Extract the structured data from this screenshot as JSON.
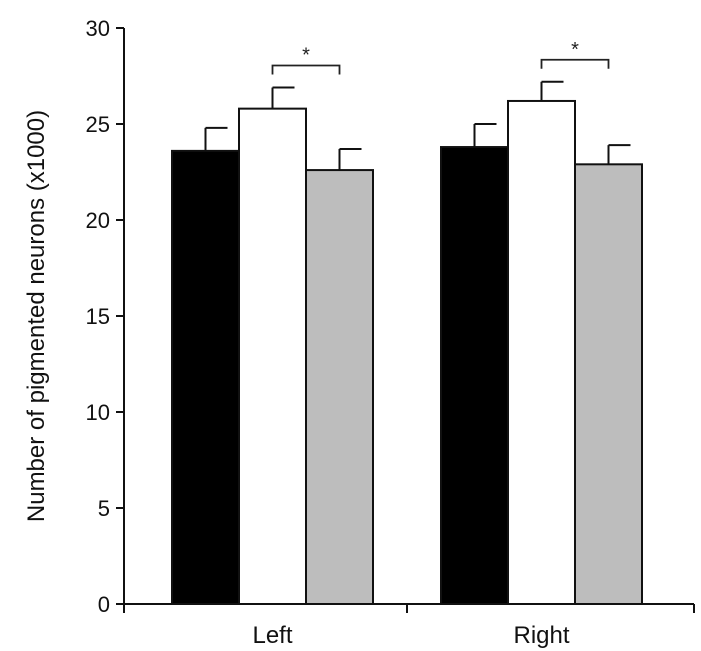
{
  "chart_data": {
    "type": "bar",
    "title": "",
    "xlabel": "",
    "ylabel": "Number of pigmented neurons (x1000)",
    "ylim": [
      0,
      30
    ],
    "yticks": [
      0,
      5,
      10,
      15,
      20,
      25,
      30
    ],
    "categories": [
      "Left",
      "Right"
    ],
    "grid": false,
    "legend": "none",
    "series": [
      {
        "color": "#000000",
        "values": [
          23.6,
          23.8
        ],
        "errors": [
          1.2,
          1.2
        ]
      },
      {
        "color": "#ffffff",
        "values": [
          25.8,
          26.2
        ],
        "errors": [
          1.1,
          1.0
        ]
      },
      {
        "color": "#bdbdbd",
        "values": [
          22.6,
          22.9
        ],
        "errors": [
          1.1,
          1.0
        ]
      }
    ],
    "annotations": [
      {
        "text": "*",
        "category": "Left",
        "from_series": 1,
        "to_series": 2
      },
      {
        "text": "*",
        "category": "Right",
        "from_series": 1,
        "to_series": 2
      }
    ]
  }
}
